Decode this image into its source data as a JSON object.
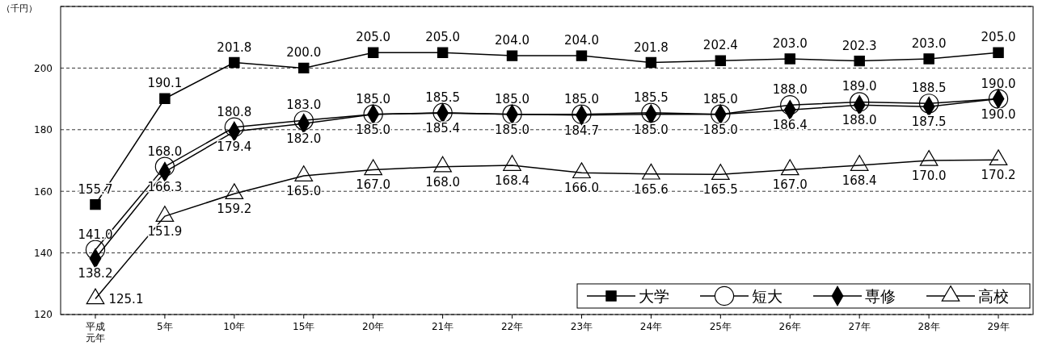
{
  "chart_data": {
    "type": "line",
    "ylabel": "（千円）",
    "categories": [
      "平成元年",
      "5年",
      "10年",
      "15年",
      "20年",
      "21年",
      "22年",
      "23年",
      "24年",
      "25年",
      "26年",
      "27年",
      "28年",
      "29年"
    ],
    "ylim": [
      120,
      220
    ],
    "yticks": [
      120,
      140,
      160,
      180,
      200,
      {
        "value": 220,
        "label": null
      }
    ],
    "grid": "y",
    "legend": "bottom right",
    "line_style": "solid",
    "series": [
      {
        "name": "大学",
        "color": "#000000",
        "marker": "square",
        "values": [
          155.7,
          190.1,
          201.8,
          200.0,
          205.0,
          205.0,
          204.0,
          204.0,
          201.8,
          202.4,
          203.0,
          202.3,
          203.0,
          205.0
        ],
        "value_labels": [
          "155.7",
          "190.1",
          "201.8",
          "200.0",
          "205.0",
          "205.0",
          "204.0",
          "204.0",
          "201.8",
          "202.4",
          "203.0",
          "202.3",
          "203.0",
          "205.0"
        ]
      },
      {
        "name": "短大",
        "color": "#000000",
        "marker": "circle",
        "values": [
          141.0,
          168.0,
          180.8,
          183.0,
          185.0,
          185.5,
          185.0,
          185.0,
          185.5,
          185.0,
          188.0,
          189.0,
          188.5,
          190.0
        ],
        "value_labels": [
          "141.0",
          "168.0",
          "180.8",
          "183.0",
          "185.0",
          "185.5",
          "185.0",
          "185.0",
          "185.5",
          "185.0",
          "188.0",
          "189.0",
          "188.5",
          "190.0"
        ]
      },
      {
        "name": "専修",
        "color": "#000000",
        "marker": "diamond",
        "values": [
          138.2,
          166.3,
          179.4,
          182.0,
          185.0,
          185.4,
          185.0,
          184.7,
          185.0,
          185.0,
          186.4,
          188.0,
          187.5,
          190.0
        ],
        "value_labels": [
          "138.2",
          "166.3",
          "179.4",
          "182.0",
          "185.0",
          "185.4",
          "185.0",
          "184.7",
          "185.0",
          "185.0",
          "186.4",
          "188.0",
          "187.5",
          "190.0"
        ]
      },
      {
        "name": "高校",
        "color": "#000000",
        "marker": "triangle",
        "values": [
          125.1,
          151.9,
          159.2,
          165.0,
          167.0,
          168.0,
          168.4,
          166.0,
          165.6,
          165.5,
          167.0,
          168.4,
          170.0,
          170.2
        ],
        "value_labels": [
          "125.1",
          "151.9",
          "159.2",
          "165.0",
          "167.0",
          "168.0",
          "168.4",
          "166.0",
          "165.6",
          "165.5",
          "167.0",
          "168.4",
          "170.0",
          "170.2"
        ]
      }
    ]
  }
}
